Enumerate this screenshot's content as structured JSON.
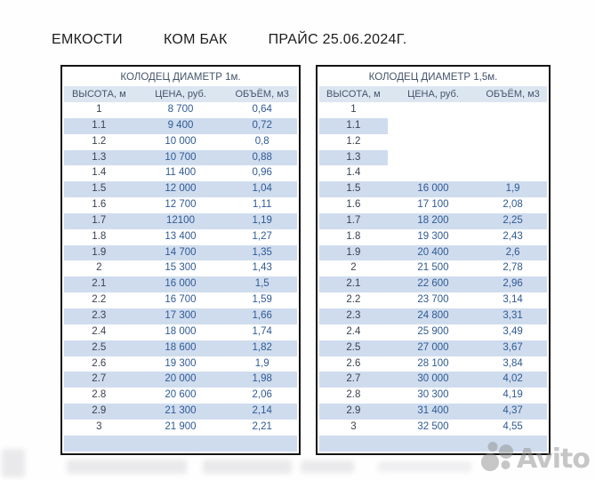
{
  "header": {
    "segments": [
      "ЕМКОСТИ",
      "КОМ БАК",
      "ПРАЙС 25.06.2024Г."
    ]
  },
  "tables": [
    {
      "title": "КОЛОДЕЦ ДИАМЕТР 1м.",
      "columns": [
        "ВЫСОТА, м",
        "ЦЕНА, руб.",
        "ОБЪЁМ, м3"
      ],
      "rows": [
        [
          "1",
          "8 700",
          "0,64"
        ],
        [
          "1.1",
          "9 400",
          "0,72"
        ],
        [
          "1.2",
          "10 000",
          "0,8"
        ],
        [
          "1.3",
          "10 700",
          "0,88"
        ],
        [
          "1.4",
          "11 400",
          "0,96"
        ],
        [
          "1.5",
          "12 000",
          "1,04"
        ],
        [
          "1.6",
          "12 700",
          "1,11"
        ],
        [
          "1.7",
          "12100",
          "1,19"
        ],
        [
          "1.8",
          "13 400",
          "1,27"
        ],
        [
          "1.9",
          "14 700",
          "1,35"
        ],
        [
          "2",
          "15 300",
          "1,43"
        ],
        [
          "2.1",
          "16 000",
          "1,5"
        ],
        [
          "2.2",
          "16 700",
          "1,59"
        ],
        [
          "2.3",
          "17 300",
          "1,66"
        ],
        [
          "2.4",
          "18 000",
          "1,74"
        ],
        [
          "2.5",
          "18 600",
          "1,82"
        ],
        [
          "2.6",
          "19 300",
          "1,9"
        ],
        [
          "2.7",
          "20 000",
          "1,98"
        ],
        [
          "2.8",
          "20 600",
          "2,06"
        ],
        [
          "2.9",
          "21 300",
          "2,14"
        ],
        [
          "3",
          "21 900",
          "2,21"
        ]
      ]
    },
    {
      "title": "КОЛОДЕЦ ДИАМЕТР 1,5м.",
      "columns": [
        "ВЫСОТА, м",
        "ЦЕНА, руб.",
        "ОБЪЁМ, м3"
      ],
      "rows": [
        [
          "1",
          "",
          ""
        ],
        [
          "1.1",
          "",
          ""
        ],
        [
          "1.2",
          "",
          ""
        ],
        [
          "1.3",
          "",
          ""
        ],
        [
          "1.4",
          "",
          ""
        ],
        [
          "1.5",
          "16 000",
          "1,9"
        ],
        [
          "1.6",
          "17 100",
          "2,08"
        ],
        [
          "1.7",
          "18 200",
          "2,25"
        ],
        [
          "1.8",
          "19 300",
          "2,43"
        ],
        [
          "1.9",
          "20 400",
          "2,6"
        ],
        [
          "2",
          "21 500",
          "2,78"
        ],
        [
          "2.1",
          "22 600",
          "2,96"
        ],
        [
          "2.2",
          "23 700",
          "3,14"
        ],
        [
          "2.3",
          "24 800",
          "3,31"
        ],
        [
          "2.4",
          "25 900",
          "3,49"
        ],
        [
          "2.5",
          "27 000",
          "3,67"
        ],
        [
          "2.6",
          "28 100",
          "3,84"
        ],
        [
          "2.7",
          "30 000",
          "4,02"
        ],
        [
          "2.8",
          "30 300",
          "4,19"
        ],
        [
          "2.9",
          "31 400",
          "4,37"
        ],
        [
          "3",
          "32 500",
          "4,55"
        ]
      ]
    }
  ],
  "watermark": {
    "text": "Avito"
  },
  "colors": {
    "band_fill": "#cfdcee",
    "header_fill": "#dce6f1",
    "header_text": "#44546a",
    "value_text": "#2f5a94",
    "table_border": "#141414"
  }
}
